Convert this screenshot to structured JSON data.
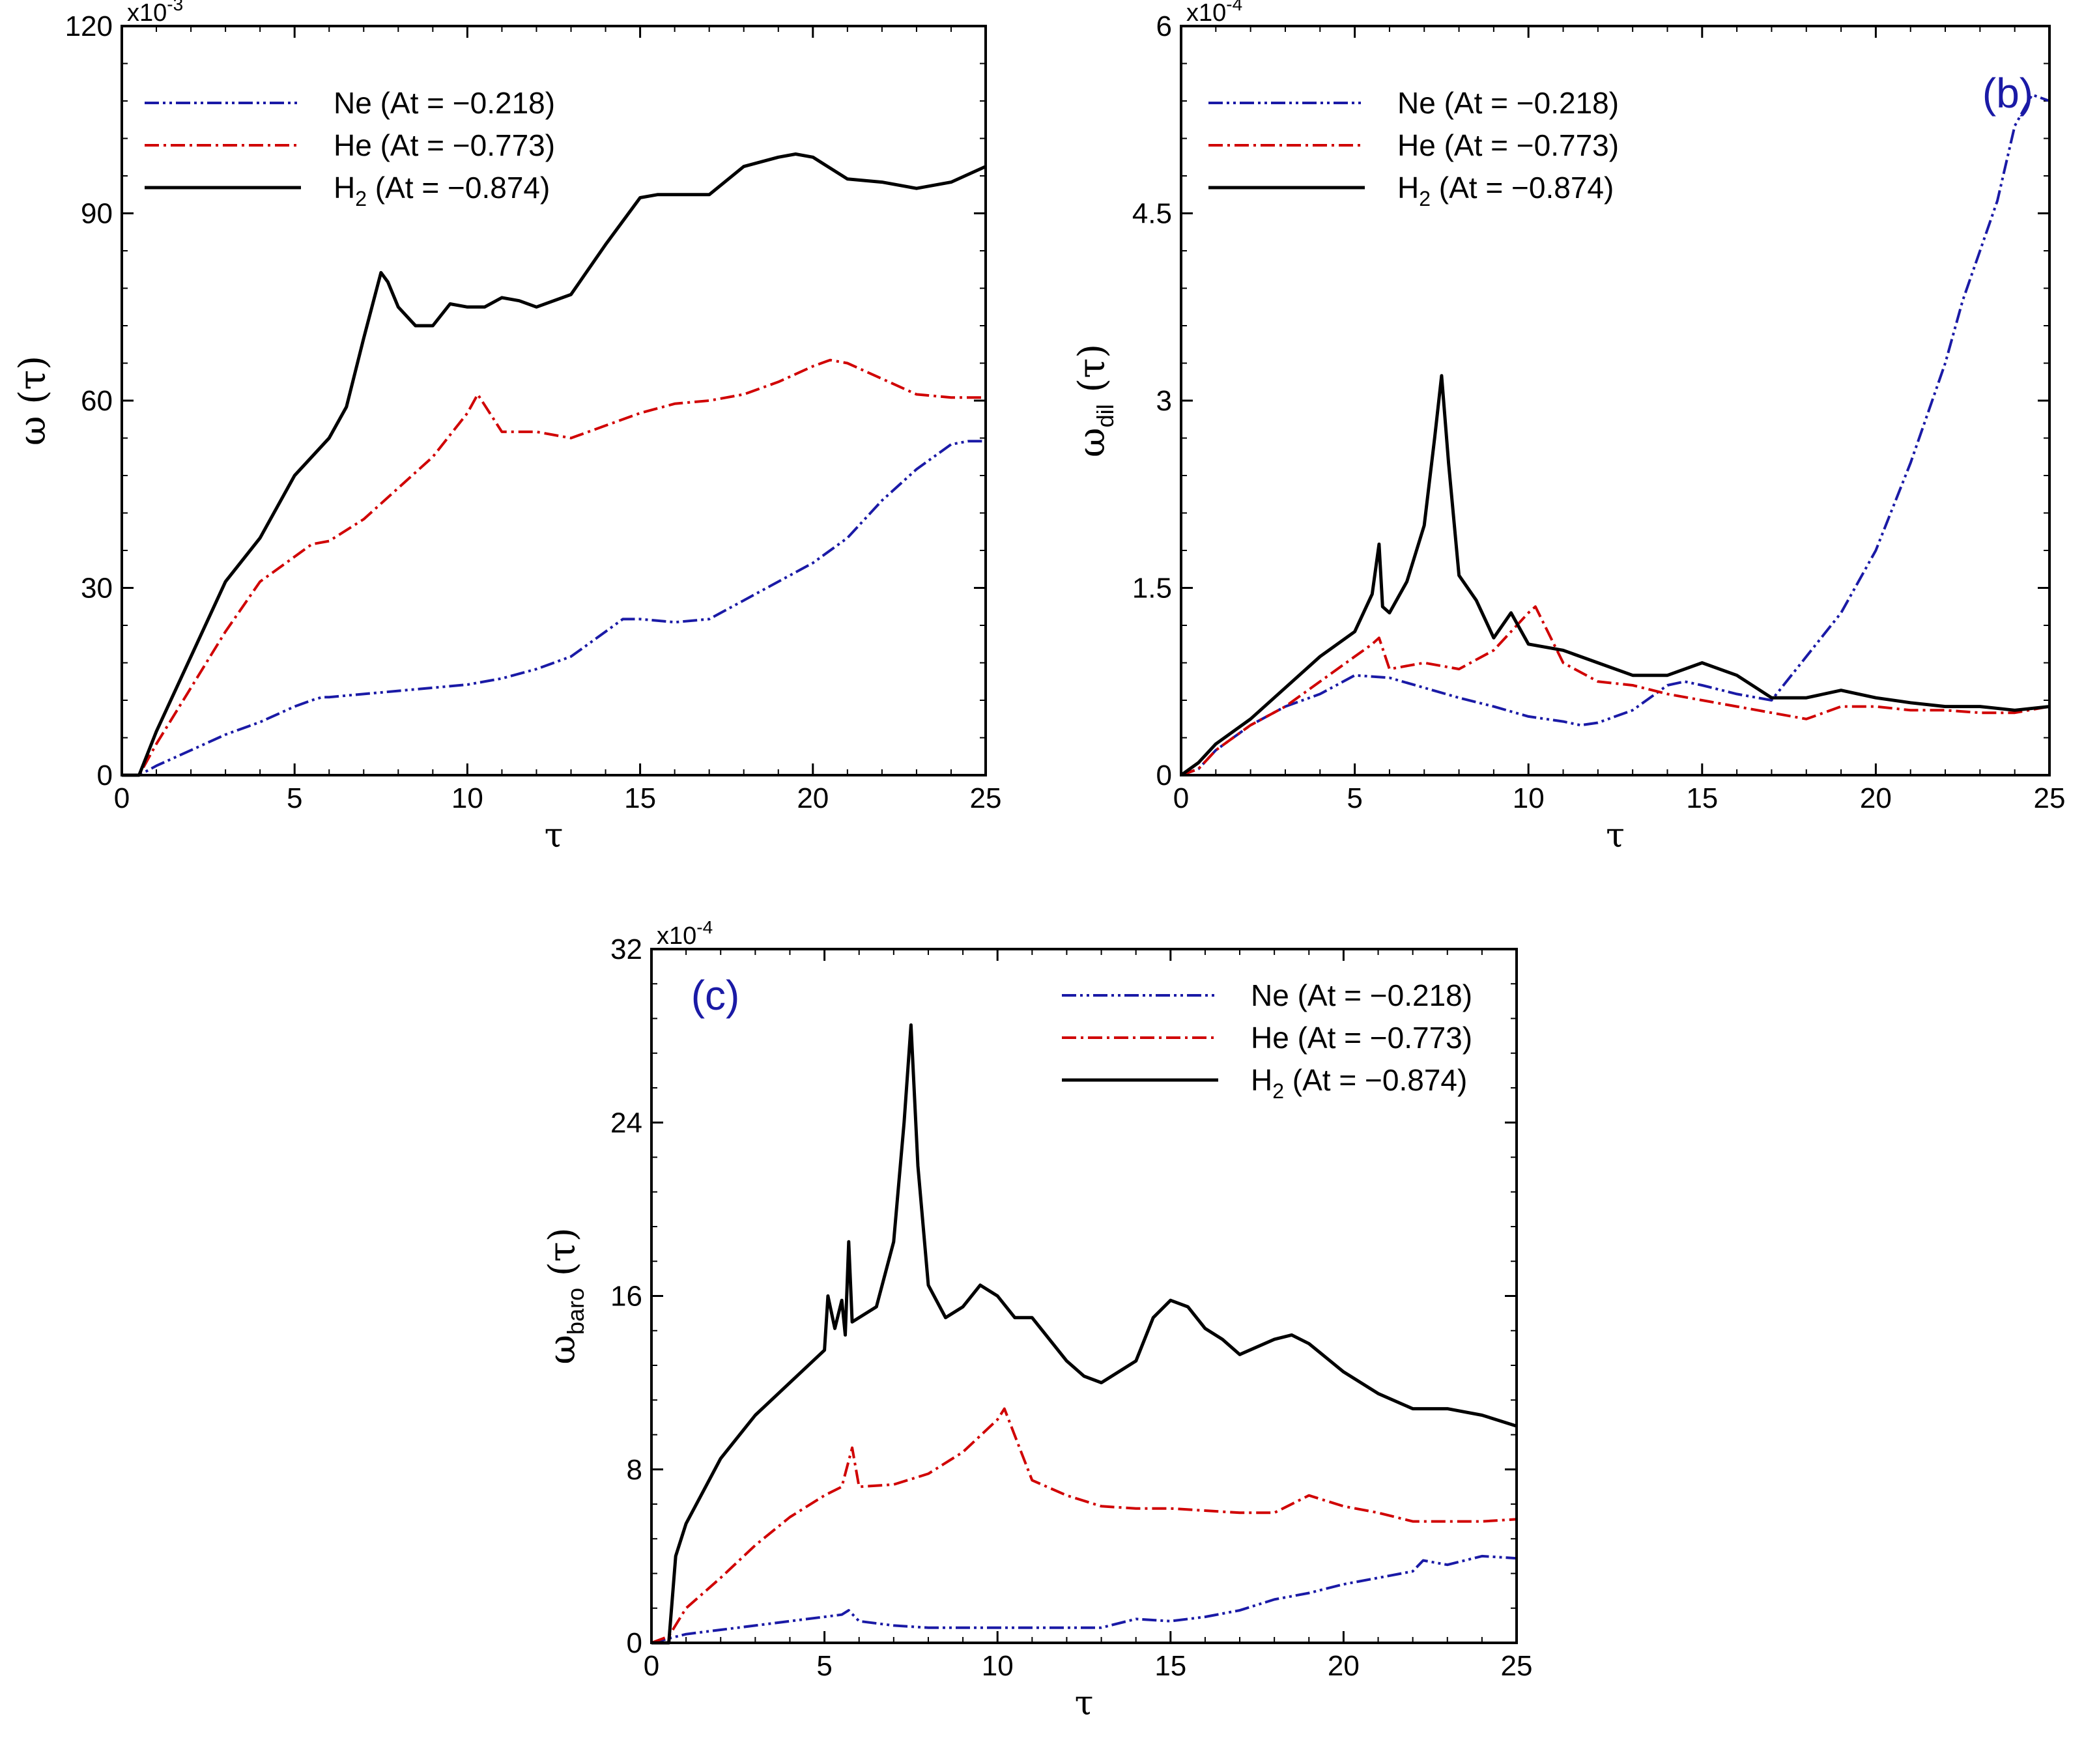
{
  "chart_data": [
    {
      "id": "a",
      "type": "line",
      "panel_label": "",
      "xlabel": "τ",
      "ylabel": "ω (τ)",
      "ylabel_base": "ω",
      "ylabel_sub": "",
      "ylabel_arg": "(τ)",
      "multiplier": "x10",
      "multiplier_exp": "-3",
      "xlim": [
        0,
        25
      ],
      "ylim": [
        0,
        120
      ],
      "xticks": [
        0,
        5,
        10,
        15,
        20,
        25
      ],
      "yticks": [
        0,
        30,
        60,
        90,
        120
      ],
      "legend_position": "top-left",
      "series": [
        {
          "name": "Ne (At = −0.218)",
          "color": "#1a1aa6",
          "dash": "dashdotdot",
          "x": [
            0,
            0.5,
            1,
            2,
            3,
            4,
            5,
            5.5,
            5.8,
            6,
            7,
            8,
            9,
            10,
            11,
            12,
            13,
            14,
            14.5,
            15,
            16,
            17,
            18,
            19,
            20,
            21,
            22,
            23,
            24,
            24.5,
            25
          ],
          "y": [
            0,
            0,
            1.5,
            4,
            6.5,
            8.5,
            11,
            12,
            12.5,
            12.5,
            13,
            13.5,
            14,
            14.5,
            15.5,
            17,
            19,
            23,
            25,
            25,
            24.5,
            25,
            28,
            31,
            34,
            38,
            44,
            49,
            53,
            53.5,
            53.5
          ]
        },
        {
          "name": "He (At = −0.773)",
          "color": "#d00000",
          "dash": "dashdot",
          "x": [
            0,
            0.5,
            1,
            2,
            3,
            4,
            5,
            5.5,
            6,
            7,
            8,
            9,
            10,
            10.3,
            11,
            12,
            13,
            14,
            15,
            16,
            17,
            18,
            19,
            20,
            20.5,
            21,
            22,
            23,
            24,
            25
          ],
          "y": [
            0,
            0,
            5,
            14,
            23,
            31,
            35,
            37,
            37.5,
            41,
            46,
            51,
            58,
            61,
            55,
            55,
            54,
            56,
            58,
            59.5,
            60,
            61,
            63,
            65.5,
            66.5,
            66,
            63.5,
            61,
            60.5,
            60.5
          ]
        },
        {
          "name": "H2 (At = −0.874)",
          "color": "#000000",
          "dash": "solid",
          "x": [
            0,
            0.5,
            1,
            2,
            2.5,
            3,
            4,
            5,
            6,
            6.5,
            7,
            7.5,
            7.7,
            8,
            8.5,
            9,
            9.5,
            10,
            10.5,
            11,
            11.5,
            12,
            13,
            14,
            15,
            15.5,
            16,
            17,
            18,
            19,
            19.5,
            20,
            21,
            22,
            23,
            24,
            25
          ],
          "y": [
            0,
            0,
            7,
            19,
            25,
            31,
            38,
            48,
            54,
            59,
            70,
            80.5,
            79,
            75,
            72,
            72,
            75.5,
            75,
            75,
            76.5,
            76,
            75,
            77,
            85,
            92.5,
            93,
            93,
            93,
            97.5,
            99,
            99.5,
            99,
            95.5,
            95,
            94,
            95,
            97.5
          ]
        }
      ]
    },
    {
      "id": "b",
      "type": "line",
      "panel_label": "(b)",
      "xlabel": "τ",
      "ylabel": "ω_dil (τ)",
      "ylabel_base": "ω",
      "ylabel_sub": "dil",
      "ylabel_arg": "(τ)",
      "multiplier": "x10",
      "multiplier_exp": "-4",
      "xlim": [
        0,
        25
      ],
      "ylim": [
        0,
        6
      ],
      "xticks": [
        0,
        5,
        10,
        15,
        20,
        25
      ],
      "yticks": [
        0,
        1.5,
        3,
        4.5,
        6
      ],
      "ytick_labels": [
        "0",
        "1.5",
        "3",
        "4.5",
        "6"
      ],
      "legend_position": "top-left",
      "series": [
        {
          "name": "Ne (At = −0.218)",
          "color": "#1a1aa6",
          "dash": "dashdotdot",
          "x": [
            0,
            0.5,
            1,
            2,
            3,
            4,
            5,
            6,
            7,
            8,
            9,
            10,
            11,
            11.5,
            12,
            13,
            14,
            14.5,
            15,
            16,
            17,
            18,
            19,
            20,
            21,
            22,
            22.5,
            23,
            23.5,
            24,
            24.5,
            25
          ],
          "y": [
            0,
            0.05,
            0.2,
            0.4,
            0.55,
            0.65,
            0.8,
            0.78,
            0.7,
            0.62,
            0.55,
            0.47,
            0.43,
            0.4,
            0.42,
            0.52,
            0.72,
            0.75,
            0.72,
            0.65,
            0.6,
            0.95,
            1.3,
            1.8,
            2.5,
            3.3,
            3.8,
            4.2,
            4.6,
            5.2,
            5.45,
            5.4
          ]
        },
        {
          "name": "He (At = −0.773)",
          "color": "#d00000",
          "dash": "dashdot",
          "x": [
            0,
            0.5,
            1,
            2,
            3,
            4,
            5,
            5.5,
            5.7,
            6,
            7,
            8,
            9,
            10,
            10.2,
            11,
            12,
            13,
            14,
            15,
            16,
            17,
            18,
            19,
            20,
            21,
            22,
            23,
            24,
            25
          ],
          "y": [
            0,
            0.05,
            0.2,
            0.4,
            0.55,
            0.75,
            0.95,
            1.05,
            1.1,
            0.85,
            0.9,
            0.85,
            1.0,
            1.3,
            1.35,
            0.9,
            0.75,
            0.72,
            0.65,
            0.6,
            0.55,
            0.5,
            0.45,
            0.55,
            0.55,
            0.52,
            0.52,
            0.5,
            0.5,
            0.55
          ]
        },
        {
          "name": "H2 (At = −0.874)",
          "color": "#000000",
          "dash": "solid",
          "x": [
            0,
            0.5,
            1,
            2,
            3,
            4,
            5,
            5.5,
            5.7,
            5.8,
            6,
            6.5,
            7,
            7.3,
            7.5,
            7.7,
            8,
            8.5,
            9,
            9.5,
            10,
            11,
            12,
            13,
            14,
            15,
            16,
            17,
            18,
            19,
            20,
            21,
            22,
            23,
            24,
            25
          ],
          "y": [
            0,
            0.1,
            0.25,
            0.45,
            0.7,
            0.95,
            1.15,
            1.45,
            1.85,
            1.35,
            1.3,
            1.55,
            2.0,
            2.7,
            3.2,
            2.5,
            1.6,
            1.4,
            1.1,
            1.3,
            1.05,
            1.0,
            0.9,
            0.8,
            0.8,
            0.9,
            0.8,
            0.62,
            0.62,
            0.68,
            0.62,
            0.58,
            0.55,
            0.55,
            0.52,
            0.55
          ]
        }
      ]
    },
    {
      "id": "c",
      "type": "line",
      "panel_label": "(c)",
      "xlabel": "τ",
      "ylabel": "ω_baro (τ)",
      "ylabel_base": "ω",
      "ylabel_sub": "baro",
      "ylabel_arg": "(τ)",
      "multiplier": "x10",
      "multiplier_exp": "-4",
      "xlim": [
        0,
        25
      ],
      "ylim": [
        0,
        32
      ],
      "xticks": [
        0,
        5,
        10,
        15,
        20,
        25
      ],
      "yticks": [
        0,
        8,
        16,
        24,
        32
      ],
      "legend_position": "top-right",
      "series": [
        {
          "name": "Ne (At = −0.218)",
          "color": "#1a1aa6",
          "dash": "dashdotdot",
          "x": [
            0,
            0.5,
            1,
            2,
            3,
            4,
            5,
            5.5,
            5.7,
            6,
            7,
            8,
            9,
            10,
            11,
            12,
            13,
            14,
            15,
            16,
            17,
            18,
            19,
            20,
            21,
            22,
            22.3,
            23,
            24,
            25
          ],
          "y": [
            0,
            0.2,
            0.4,
            0.6,
            0.8,
            1.0,
            1.2,
            1.3,
            1.5,
            1.0,
            0.8,
            0.7,
            0.7,
            0.7,
            0.7,
            0.7,
            0.7,
            1.1,
            1.0,
            1.2,
            1.5,
            2.0,
            2.3,
            2.7,
            3.0,
            3.3,
            3.8,
            3.6,
            4.0,
            3.9
          ]
        },
        {
          "name": "He (At = −0.773)",
          "color": "#d00000",
          "dash": "dashdot",
          "x": [
            0,
            0.5,
            1,
            2,
            3,
            4,
            5,
            5.5,
            5.8,
            6,
            7,
            8,
            9,
            10,
            10.2,
            11,
            12,
            13,
            14,
            15,
            16,
            17,
            18,
            19,
            20,
            21,
            22,
            23,
            24,
            25
          ],
          "y": [
            0,
            0.3,
            1.6,
            3.0,
            4.5,
            5.8,
            6.8,
            7.2,
            9.0,
            7.2,
            7.3,
            7.8,
            8.8,
            10.3,
            10.8,
            7.5,
            6.8,
            6.3,
            6.2,
            6.2,
            6.1,
            6.0,
            6.0,
            6.8,
            6.3,
            6.0,
            5.6,
            5.6,
            5.6,
            5.7
          ]
        },
        {
          "name": "H2 (At = −0.874)",
          "color": "#000000",
          "dash": "solid",
          "x": [
            0,
            0.5,
            0.7,
            1,
            2,
            3,
            4,
            5,
            5.1,
            5.3,
            5.5,
            5.6,
            5.7,
            5.8,
            6,
            6.5,
            7,
            7.3,
            7.5,
            7.7,
            8,
            8.5,
            9,
            9.5,
            10,
            10.5,
            11,
            12,
            12.5,
            13,
            14,
            14.5,
            15,
            15.5,
            16,
            16.5,
            17,
            18,
            18.5,
            19,
            20,
            21,
            22,
            23,
            24,
            25
          ],
          "y": [
            0,
            0,
            4,
            5.5,
            8.5,
            10.5,
            12.0,
            13.5,
            16,
            14.5,
            15.8,
            14.2,
            18.5,
            14.8,
            15.0,
            15.5,
            18.5,
            24,
            28.5,
            22,
            16.5,
            15.0,
            15.5,
            16.5,
            16.0,
            15.0,
            15.0,
            13.0,
            12.3,
            12.0,
            13.0,
            15.0,
            15.8,
            15.5,
            14.5,
            14.0,
            13.3,
            14.0,
            14.2,
            13.8,
            12.5,
            11.5,
            10.8,
            10.8,
            10.5,
            10.0
          ]
        }
      ]
    }
  ]
}
